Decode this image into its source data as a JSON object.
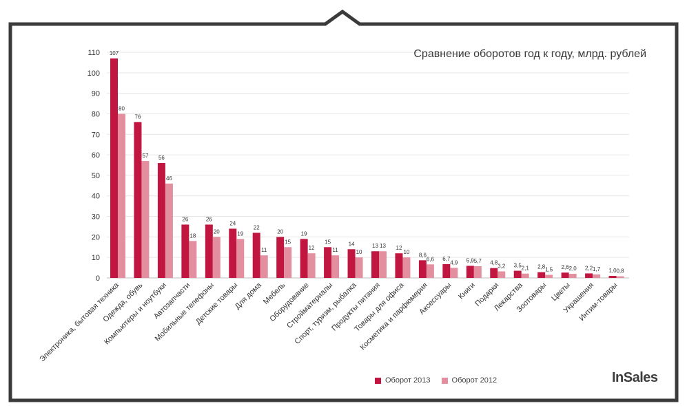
{
  "chart_data": {
    "type": "bar",
    "title": "Сравнение оборотов год к году, млрд. рублей",
    "ylim": [
      0,
      110
    ],
    "yticks": [
      0,
      10,
      20,
      30,
      40,
      50,
      60,
      70,
      80,
      90,
      100,
      110
    ],
    "grid": true,
    "legend_position": "bottom-right",
    "categories": [
      "Электроника, бытовая техника",
      "Одежда, обувь",
      "Компьютеры и ноутбуки",
      "Автозапчасти",
      "Мобильные телефоны",
      "Детские товары",
      "Для дома",
      "Мебель",
      "Оборудование",
      "Стройматериалы",
      "Спорт, туризм, рыбалка",
      "Продукты питания",
      "Товары для офиса",
      "Косметика и парфюмерия",
      "Аксессуары",
      "Книги",
      "Подарки",
      "Лекарства",
      "Зоотовары",
      "Цветы",
      "Украшения",
      "Интим-товары"
    ],
    "series": [
      {
        "name": "Оборот 2013",
        "color": "#c0163f",
        "values": [
          107,
          76,
          56,
          26,
          26,
          24,
          22,
          20,
          19,
          15,
          14,
          13,
          12,
          8.6,
          6.7,
          5.9,
          4.8,
          3.5,
          2.8,
          2.6,
          2.2,
          1.0
        ],
        "labels": [
          "107",
          "76",
          "56",
          "26",
          "26",
          "24",
          "22",
          "20",
          "19",
          "15",
          "14",
          "13",
          "12",
          "8,6",
          "6,7",
          "5,9",
          "4,8",
          "3,5",
          "2,8",
          "2,6",
          "2,2",
          "1,0"
        ]
      },
      {
        "name": "Оборот 2012",
        "color": "#e38f9f",
        "values": [
          80,
          57,
          46,
          18,
          20,
          19,
          11,
          15,
          12,
          11,
          10,
          13,
          10,
          6.6,
          4.9,
          5.7,
          3.2,
          2.1,
          1.5,
          2.0,
          1.7,
          0.8
        ],
        "labels": [
          "80",
          "57",
          "46",
          "18",
          "20",
          "19",
          "11",
          "15",
          "12",
          "11",
          "10",
          "13",
          "10",
          "6,6",
          "4,9",
          "5,7",
          "3,2",
          "2,1",
          "1,5",
          "2,0",
          "1,7",
          "0,8"
        ]
      }
    ]
  },
  "logo": "InSales"
}
